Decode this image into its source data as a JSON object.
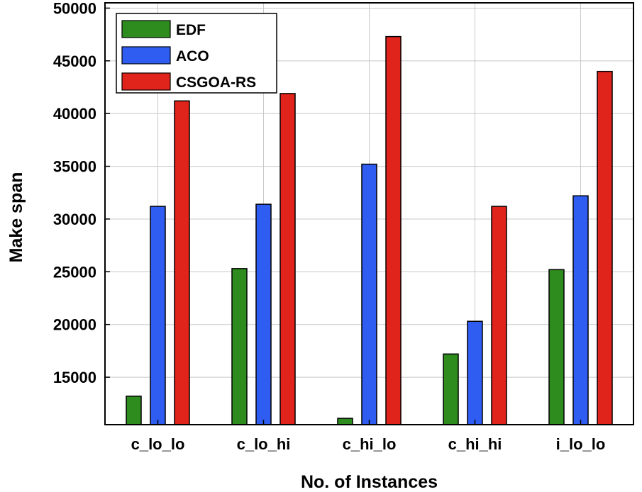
{
  "chart_data": {
    "type": "bar",
    "title": "",
    "xlabel": "No. of Instances",
    "ylabel": "Make span",
    "categories": [
      "c_lo_lo",
      "c_lo_hi",
      "c_hi_lo",
      "c_hi_hi",
      "i_lo_lo"
    ],
    "series": [
      {
        "name": "EDF",
        "color": "#2e8b1e",
        "values": [
          13200,
          25300,
          11100,
          17200,
          25200
        ]
      },
      {
        "name": "ACO",
        "color": "#2f5df2",
        "values": [
          31200,
          31400,
          35200,
          20300,
          32200
        ]
      },
      {
        "name": "CSGOA-RS",
        "color": "#e0231b",
        "values": [
          41200,
          41900,
          47300,
          31200,
          44000
        ]
      }
    ],
    "ylim": [
      10500,
      50500
    ],
    "yticks": [
      15000,
      20000,
      25000,
      30000,
      35000,
      40000,
      45000,
      50000
    ],
    "grid": true,
    "legend_position": "top-left"
  }
}
